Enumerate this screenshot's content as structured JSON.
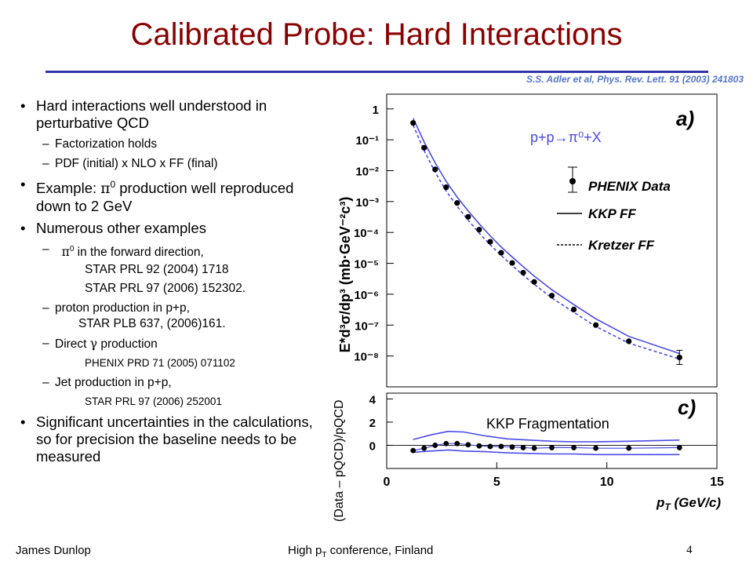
{
  "title": "Calibrated Probe: Hard Interactions",
  "citation": "S.S. Adler et al, Phys. Rev. Lett. 91 (2003) 241803",
  "bullets": {
    "b1": "Hard interactions well understood in perturbative QCD",
    "b1_sub1": "Factorization holds",
    "b1_sub2": "PDF (initial) x NLO x FF (final)",
    "b2_pre": "Example: ",
    "b2_sym": "π",
    "b2_sup": "0",
    "b2_post": " production well reproduced down to 2 GeV",
    "b3": "Numerous other examples",
    "b3_sub1_sym": "π",
    "b3_sub1_sup": "0",
    "b3_sub1": " in the forward direction,",
    "b3_sub1_ref1": "STAR PRL 92 (2004) 1718",
    "b3_sub1_ref2": "STAR PRL 97 (2006) 152302.",
    "b3_sub2": "proton production in p+p,",
    "b3_sub2_ref": "STAR PLB 637, (2006)161.",
    "b3_sub3_pre": "Direct ",
    "b3_sub3_sym": "γ",
    "b3_sub3_post": " production",
    "b3_sub3_ref": "PHENIX PRD 71 (2005) 071102",
    "b3_sub4": "Jet production in p+p,",
    "b3_sub4_ref": "STAR PRL 97 (2006) 252001",
    "b4": "Significant uncertainties in the calculations, so for precision the baseline needs to be measured"
  },
  "footer": {
    "author": "James Dunlop",
    "conference_pre": "High p",
    "conference_sub": "T",
    "conference_post": " conference, Finland",
    "page": "4"
  },
  "colors": {
    "title": "#8b0000",
    "rule": "#3333aa",
    "curve": "#4a4ae8",
    "citation": "#5577cc"
  },
  "chart_data": [
    {
      "type": "scatter",
      "panel_label": "a)",
      "annotation": "p+p→π⁰+X",
      "ylabel": "E*d³σ/dp³ (mb·GeV⁻²c³)",
      "yscale": "log",
      "ylim": [
        1e-09,
        3
      ],
      "xlim": [
        0,
        15
      ],
      "ytick_labels": [
        "1",
        "10⁻¹",
        "10⁻²",
        "10⁻³",
        "10⁻⁴",
        "10⁻⁵",
        "10⁻⁶",
        "10⁻⁷",
        "10⁻⁸"
      ],
      "legend": [
        "PHENIX Data",
        "KKP FF",
        "Kretzer FF"
      ],
      "legend_position": "right",
      "series": [
        {
          "name": "PHENIX Data",
          "style": "points",
          "x": [
            1.2,
            1.7,
            2.2,
            2.7,
            3.2,
            3.7,
            4.2,
            4.7,
            5.2,
            5.7,
            6.2,
            6.7,
            7.5,
            8.5,
            9.5,
            11.0,
            13.3
          ],
          "y": [
            0.35,
            0.055,
            0.011,
            0.0029,
            0.0009,
            0.00032,
            0.000123,
            5e-05,
            2.2e-05,
            1.03e-05,
            5e-06,
            2.5e-06,
            9e-07,
            3.2e-07,
            1e-07,
            3e-08,
            9e-09
          ]
        },
        {
          "name": "KKP FF",
          "style": "solid",
          "x": [
            1.2,
            1.7,
            2.2,
            2.7,
            3.2,
            3.7,
            4.2,
            4.7,
            5.2,
            5.7,
            6.2,
            6.7,
            7.5,
            8.5,
            9.5,
            11.0,
            13.3
          ],
          "y": [
            0.5,
            0.085,
            0.018,
            0.0045,
            0.0014,
            0.0005,
            0.00019,
            7.8e-05,
            3.4e-05,
            1.6e-05,
            7.8e-06,
            3.9e-06,
            1.4e-06,
            4.6e-07,
            1.6e-07,
            4.3e-08,
            1.2e-08
          ]
        },
        {
          "name": "Kretzer FF",
          "style": "dashed",
          "x": [
            1.2,
            1.7,
            2.2,
            2.7,
            3.2,
            3.7,
            4.2,
            4.7,
            5.2,
            5.7,
            6.2,
            6.7,
            7.5,
            8.5,
            9.5,
            11.0,
            13.3
          ],
          "y": [
            0.3,
            0.045,
            0.009,
            0.0022,
            0.0007,
            0.00025,
            9.5e-05,
            4e-05,
            1.8e-05,
            8.5e-06,
            4.1e-06,
            2.1e-06,
            7.6e-07,
            2.6e-07,
            9e-08,
            2.6e-08,
            8e-09
          ]
        }
      ]
    },
    {
      "type": "scatter",
      "panel_label": "c)",
      "annotation": "KKP Fragmentation",
      "ylabel": "(Data – pQCD)/pQCD",
      "xlabel": "pT (GeV/c)",
      "xlim": [
        0,
        15
      ],
      "ylim": [
        -2,
        4.5
      ],
      "xticks": [
        0,
        5,
        10,
        15
      ],
      "yticks": [
        0,
        2,
        4
      ],
      "zero_line": true,
      "series": [
        {
          "name": "data",
          "style": "points",
          "x": [
            1.2,
            1.7,
            2.2,
            2.7,
            3.2,
            3.7,
            4.2,
            4.7,
            5.2,
            5.7,
            6.2,
            6.7,
            7.5,
            8.5,
            9.5,
            11.0,
            13.3
          ],
          "y": [
            -0.45,
            -0.25,
            0.0,
            0.15,
            0.15,
            0.05,
            -0.05,
            -0.1,
            -0.1,
            -0.15,
            -0.2,
            -0.25,
            -0.2,
            -0.2,
            -0.25,
            -0.25,
            -0.2
          ]
        },
        {
          "name": "upper band",
          "style": "solid",
          "x": [
            1.2,
            2.0,
            2.8,
            3.5,
            4.5,
            5.5,
            6.5,
            7.5,
            8.5,
            9.5,
            11.0,
            13.3
          ],
          "y": [
            0.5,
            0.9,
            1.2,
            1.15,
            0.8,
            0.55,
            0.45,
            0.35,
            0.3,
            0.3,
            0.35,
            0.45
          ]
        },
        {
          "name": "lower band",
          "style": "solid",
          "x": [
            1.2,
            2.0,
            2.8,
            3.5,
            4.5,
            5.5,
            6.5,
            7.5,
            8.5,
            9.5,
            11.0,
            13.3
          ],
          "y": [
            -0.6,
            -0.5,
            -0.4,
            -0.5,
            -0.55,
            -0.65,
            -0.7,
            -0.75,
            -0.75,
            -0.8,
            -0.8,
            -0.8
          ]
        }
      ]
    }
  ]
}
